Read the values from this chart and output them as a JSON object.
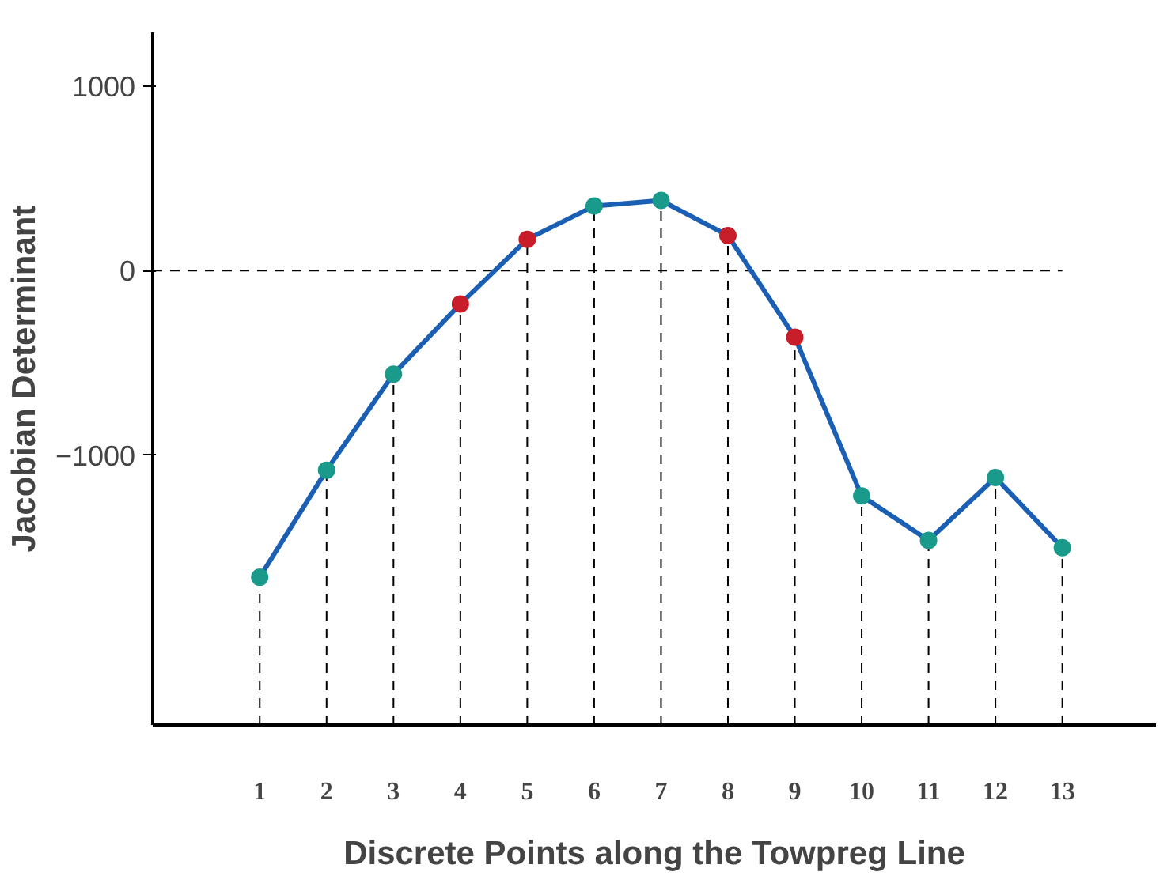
{
  "chart_data": {
    "type": "line",
    "xlabel": "Discrete Points along the Towpreg Line",
    "ylabel": "Jacobian Determinant",
    "x": [
      1,
      2,
      3,
      4,
      5,
      6,
      7,
      8,
      9,
      10,
      11,
      12,
      13
    ],
    "series": [
      {
        "color": "#1a5fb4",
        "values": [
          -1660,
          -1080,
          -560,
          -180,
          170,
          350,
          380,
          190,
          -360,
          -1220,
          -1460,
          -1120,
          -1500
        ],
        "colors": [
          "#1a9a8a",
          "#1a9a8a",
          "#1a9a8a",
          "#c81e2a",
          "#c81e2a",
          "#1a9a8a",
          "#1a9a8a",
          "#c81e2a",
          "#c81e2a",
          "#1a9a8a",
          "#1a9a8a",
          "#1a9a8a",
          "#1a9a8a"
        ]
      }
    ],
    "xlim": [
      -0.6,
      14.4
    ],
    "xticks": [
      1,
      2,
      3,
      4,
      5,
      6,
      7,
      8,
      9,
      10,
      11,
      12,
      13
    ],
    "ylim": [
      -2460,
      1290
    ],
    "yticks": [
      1000,
      0,
      -1000
    ],
    "marker": "circle",
    "line_style": "solid",
    "grid": false,
    "ref_lines": [
      {
        "axis": "y",
        "value": 0,
        "line_style": "dashed",
        "color": "#000000"
      },
      {
        "axis": "x",
        "value": 1,
        "line_style": "dashed",
        "color": "#000000"
      },
      {
        "axis": "x",
        "value": 2,
        "line_style": "dashed",
        "color": "#000000"
      },
      {
        "axis": "x",
        "value": 3,
        "line_style": "dashed",
        "color": "#000000"
      },
      {
        "axis": "x",
        "value": 4,
        "line_style": "dashed",
        "color": "#000000"
      },
      {
        "axis": "x",
        "value": 5,
        "line_style": "dashed",
        "color": "#000000"
      },
      {
        "axis": "x",
        "value": 6,
        "line_style": "dashed",
        "color": "#000000"
      },
      {
        "axis": "x",
        "value": 7,
        "line_style": "dashed",
        "color": "#000000"
      },
      {
        "axis": "x",
        "value": 8,
        "line_style": "dashed",
        "color": "#000000"
      },
      {
        "axis": "x",
        "value": 9,
        "line_style": "dashed",
        "color": "#000000"
      },
      {
        "axis": "x",
        "value": 10,
        "line_style": "dashed",
        "color": "#000000"
      },
      {
        "axis": "x",
        "value": 11,
        "line_style": "dashed",
        "color": "#000000"
      },
      {
        "axis": "x",
        "value": 12,
        "line_style": "dashed",
        "color": "#000000"
      },
      {
        "axis": "x",
        "value": 13,
        "line_style": "dashed",
        "color": "#000000"
      }
    ]
  }
}
